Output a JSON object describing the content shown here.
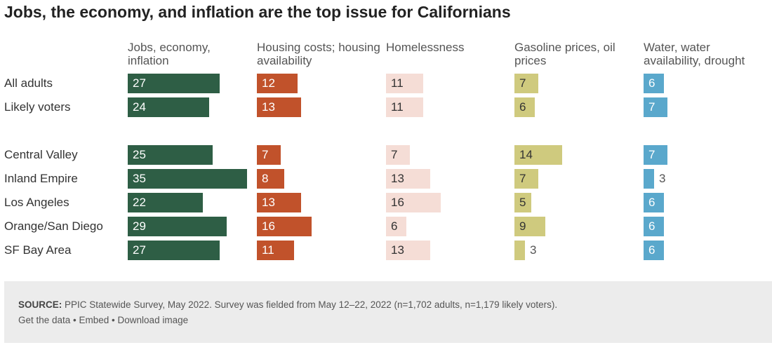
{
  "chart_data": {
    "type": "bar",
    "title": "Jobs, the economy, and inflation are the top issue for Californians",
    "categories": [
      "All adults",
      "Likely voters",
      "Central Valley",
      "Inland Empire",
      "Los Angeles",
      "Orange/San Diego",
      "SF Bay Area"
    ],
    "series": [
      {
        "name": "Jobs, economy, inflation",
        "color": "#2e5e45",
        "label_color": "#ffffff",
        "values": [
          27,
          24,
          25,
          35,
          22,
          29,
          27
        ]
      },
      {
        "name": "Housing costs; housing availability",
        "color": "#c1522b",
        "label_color": "#ffffff",
        "values": [
          12,
          13,
          7,
          8,
          13,
          16,
          11
        ]
      },
      {
        "name": "Homelessness",
        "color": "#f5ddd6",
        "label_color": "#333333",
        "values": [
          11,
          11,
          7,
          13,
          16,
          6,
          13
        ]
      },
      {
        "name": "Gasoline prices, oil prices",
        "color": "#cfca7e",
        "label_color": "#333333",
        "values": [
          7,
          6,
          14,
          7,
          5,
          9,
          3
        ]
      },
      {
        "name": "Water, water availability, drought",
        "color": "#5aa8cc",
        "label_color": "#ffffff",
        "values": [
          6,
          7,
          7,
          3,
          6,
          6,
          6
        ]
      }
    ],
    "xlim": [
      0,
      35
    ]
  },
  "footer": {
    "source_label": "SOURCE:",
    "source_text": " PPIC Statewide Survey, May 2022. Survey was fielded from May 12–22, 2022 (n=1,702 adults, n=1,179 likely voters).",
    "links": "Get the data • Embed • Download image"
  }
}
